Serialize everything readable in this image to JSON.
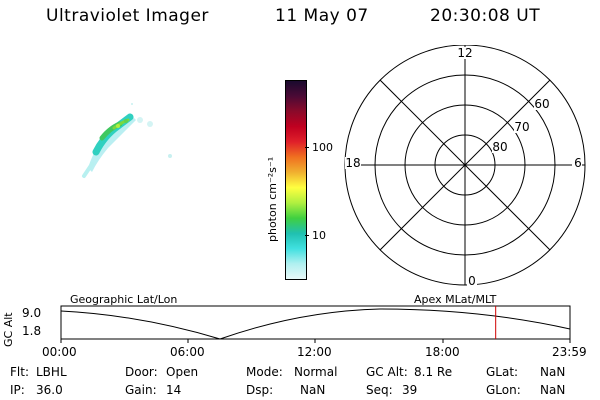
{
  "header": {
    "instrument": "Ultraviolet Imager",
    "date": "11 May 07",
    "time": "20:30:08 UT"
  },
  "colorbar": {
    "unit": "photon cm⁻²s⁻¹",
    "ticks": [
      "100",
      "10"
    ],
    "scale": "log",
    "colors": [
      "#1a0a2e",
      "#4b0a35",
      "#8b0a2a",
      "#c00020",
      "#e0202a",
      "#f07020",
      "#f0b030",
      "#ffff40",
      "#b0f040",
      "#40d040",
      "#20c0b0",
      "#40e0e0",
      "#b0f0f0",
      "#e8f8f8"
    ]
  },
  "polar": {
    "mlt_labels": [
      "12",
      "18",
      "6",
      "0"
    ],
    "lat_labels": [
      "60",
      "70",
      "80"
    ]
  },
  "timeline": {
    "left_label": "Geographic Lat/Lon",
    "right_label": "Apex MLat/MLT",
    "axis_label": "GC Alt",
    "alt_max": "9.0",
    "alt_min": "1.8",
    "time_ticks": [
      "00:00",
      "06:00",
      "12:00",
      "18:00",
      "23:59"
    ],
    "current_time_fraction": 0.854,
    "marker_color": "#d00000"
  },
  "info": {
    "flt_label": "Flt:",
    "flt": "LBHL",
    "ip_label": "IP:",
    "ip": "36.0",
    "door_label": "Door:",
    "door": "Open",
    "gain_label": "Gain:",
    "gain": "14",
    "mode_label": "Mode:",
    "mode": "Normal",
    "dsp_label": "Dsp:",
    "dsp": "NaN",
    "gcalt_label": "GC Alt:",
    "gcalt": "8.1 Re",
    "seq_label": "Seq:",
    "seq": "39",
    "glat_label": "GLat:",
    "glat": "NaN",
    "glon_label": "GLon:",
    "glon": "NaN"
  }
}
